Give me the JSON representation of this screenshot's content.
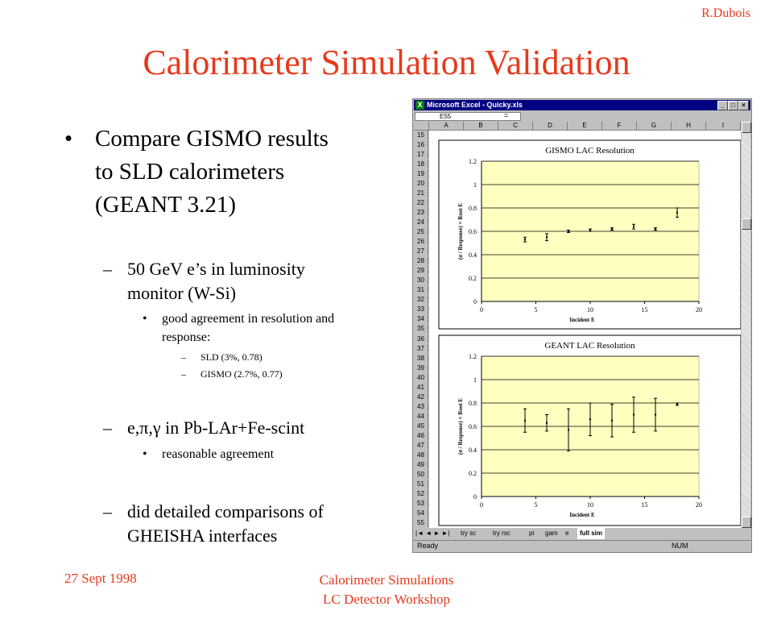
{
  "slide": {
    "author": "R.Dubois",
    "title": "Calorimeter Simulation Validation",
    "footer_left": "27 Sept 1998",
    "footer_center_1": "Calorimeter Simulations",
    "footer_center_2": "LC Detector Workshop"
  },
  "bullets": {
    "b1_mark": "•",
    "b1_line1": "Compare GISMO results",
    "b1_line2": "to SLD calorimeters",
    "b1_line3": "(GEANT 3.21)",
    "b1a_mark": "–",
    "b1a_line1": "50 GeV e’s in luminosity",
    "b1a_line2": "monitor (W-Si)",
    "b1a1_mark": "•",
    "b1a1_line1": "good agreement in resolution and",
    "b1a1_line2": "response:",
    "b1a1a_mark": "–",
    "b1a1a": "SLD (3%, 0.78)",
    "b1a1b_mark": "–",
    "b1a1b": "GISMO (2.7%, 0.77)",
    "b1b_mark": "–",
    "b1b": "e,π,γ in Pb-LAr+Fe-scint",
    "b1b1_mark": "•",
    "b1b1": "reasonable agreement",
    "b1c_mark": "–",
    "b1c_line1": "did detailed comparisons of",
    "b1c_line2": "GHEISHA interfaces"
  },
  "excel": {
    "window_title": "Microsoft Excel - Quicky.xls",
    "app_icon": "X",
    "name_box": "E55",
    "formula_sign": "=",
    "columns": [
      "A",
      "B",
      "C",
      "D",
      "E",
      "F",
      "G",
      "H",
      "I"
    ],
    "rows": [
      "15",
      "16",
      "17",
      "18",
      "19",
      "20",
      "21",
      "22",
      "23",
      "24",
      "25",
      "26",
      "27",
      "28",
      "29",
      "30",
      "31",
      "32",
      "33",
      "34",
      "35",
      "36",
      "37",
      "38",
      "39",
      "40",
      "41",
      "42",
      "43",
      "44",
      "45",
      "46",
      "47",
      "48",
      "49",
      "50",
      "51",
      "52",
      "53",
      "54",
      "55"
    ],
    "tab_nav": "|◄ ◄ ► ►|",
    "sheet_tabs": [
      "try sc",
      "try rsc",
      "pi",
      "gam",
      "e",
      "full sim"
    ],
    "status_left": "Ready",
    "status_right": "NUM",
    "min_glyph": "_",
    "max_glyph": "□",
    "close_glyph": "×"
  },
  "chart_data": [
    {
      "type": "scatter",
      "title": "GISMO LAC Resolution",
      "xlabel": "Incident E",
      "ylabel": "(σ / Response) × Root E",
      "xlim": [
        0,
        20
      ],
      "ylim": [
        0,
        1.2
      ],
      "x_ticks": [
        "0",
        "5",
        "10",
        "15",
        "20"
      ],
      "y_ticks": [
        "0",
        "0.2",
        "0.4",
        "0.6",
        "0.8",
        "1",
        "1.2"
      ],
      "points": [
        {
          "x": 4,
          "y": 0.53,
          "err": 0.02
        },
        {
          "x": 6,
          "y": 0.55,
          "err": 0.03
        },
        {
          "x": 8,
          "y": 0.6,
          "err": 0.01
        },
        {
          "x": 10,
          "y": 0.61,
          "err": 0.01
        },
        {
          "x": 12,
          "y": 0.62,
          "err": 0.01
        },
        {
          "x": 14,
          "y": 0.64,
          "err": 0.02
        },
        {
          "x": 16,
          "y": 0.62,
          "err": 0.01
        },
        {
          "x": 18,
          "y": 0.76,
          "err": 0.04
        }
      ],
      "grid": true,
      "background": "#ffffc0"
    },
    {
      "type": "scatter",
      "title": "GEANT LAC Resolution",
      "xlabel": "Incident E",
      "ylabel": "(σ / Response) × Root E",
      "xlim": [
        0,
        20
      ],
      "ylim": [
        0,
        1.2
      ],
      "x_ticks": [
        "0",
        "5",
        "10",
        "15",
        "20"
      ],
      "y_ticks": [
        "0",
        "0.2",
        "0.4",
        "0.6",
        "0.8",
        "1",
        "1.2"
      ],
      "points": [
        {
          "x": 4,
          "y": 0.65,
          "err": 0.1
        },
        {
          "x": 6,
          "y": 0.63,
          "err": 0.07
        },
        {
          "x": 8,
          "y": 0.57,
          "err": 0.18
        },
        {
          "x": 10,
          "y": 0.66,
          "err": 0.14
        },
        {
          "x": 12,
          "y": 0.65,
          "err": 0.14
        },
        {
          "x": 14,
          "y": 0.7,
          "err": 0.15
        },
        {
          "x": 16,
          "y": 0.7,
          "err": 0.14
        },
        {
          "x": 18,
          "y": 0.79,
          "err": 0.01
        }
      ],
      "grid": true,
      "background": "#ffffc0"
    }
  ]
}
